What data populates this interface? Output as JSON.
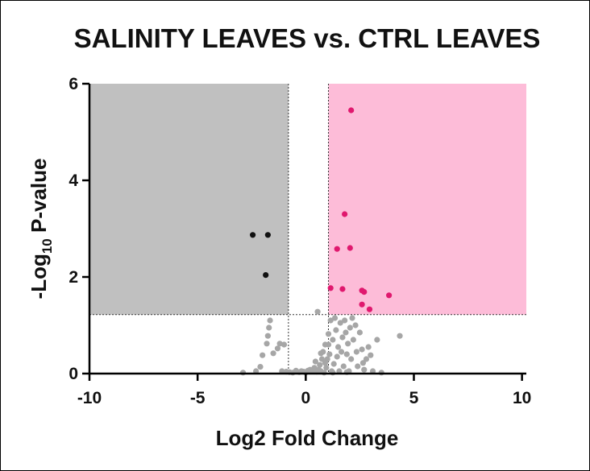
{
  "chart_data": {
    "type": "scatter",
    "title": "SALINITY LEAVES vs. CTRL LEAVES",
    "xlabel": "Log2 Fold Change",
    "ylabel_main": "-Log",
    "ylabel_sub": "10",
    "ylabel_rest": " P-value",
    "xlim": [
      -10,
      10.2
    ],
    "ylim": [
      0,
      6
    ],
    "xticks": [
      -10,
      -5,
      0,
      5,
      10
    ],
    "yticks": [
      0,
      2,
      4,
      6
    ],
    "thresholds": {
      "x_low": -0.8,
      "x_high": 1.05,
      "y": 1.22
    },
    "colors": {
      "down_region": "#c0c0c0",
      "up_region": "#fdbcd8",
      "down": "#111111",
      "up": "#e0186e",
      "ns": "#a6a6a6"
    },
    "series": [
      {
        "role": "down",
        "points": [
          [
            -2.45,
            2.87
          ],
          [
            -1.75,
            2.87
          ],
          [
            -1.85,
            2.04
          ]
        ]
      },
      {
        "role": "up",
        "points": [
          [
            2.1,
            5.45
          ],
          [
            1.8,
            3.3
          ],
          [
            1.45,
            2.58
          ],
          [
            2.05,
            2.6
          ],
          [
            1.15,
            1.77
          ],
          [
            1.7,
            1.75
          ],
          [
            2.6,
            1.72
          ],
          [
            2.7,
            1.69
          ],
          [
            3.85,
            1.62
          ],
          [
            2.6,
            1.43
          ],
          [
            2.95,
            1.33
          ]
        ]
      },
      {
        "role": "ns",
        "points": [
          [
            -2.9,
            0.02
          ],
          [
            -2.3,
            0.05
          ],
          [
            -2.1,
            0.14
          ],
          [
            -2.0,
            0.38
          ],
          [
            -1.8,
            0.62
          ],
          [
            -1.75,
            0.78
          ],
          [
            -1.7,
            0.95
          ],
          [
            -1.65,
            1.1
          ],
          [
            -1.5,
            0.42
          ],
          [
            -1.3,
            0.52
          ],
          [
            -1.2,
            0.62
          ],
          [
            -1.1,
            0.05
          ],
          [
            -1.0,
            0.6
          ],
          [
            -0.9,
            0.04
          ],
          [
            -0.75,
            0.03
          ],
          [
            -0.6,
            0.02
          ],
          [
            -0.45,
            0.06
          ],
          [
            -0.3,
            0.03
          ],
          [
            -0.2,
            0.05
          ],
          [
            -0.1,
            0.04
          ],
          [
            0.0,
            0.02
          ],
          [
            0.1,
            0.06
          ],
          [
            0.2,
            0.08
          ],
          [
            0.3,
            0.05
          ],
          [
            0.4,
            0.12
          ],
          [
            0.45,
            0.25
          ],
          [
            0.5,
            0.04
          ],
          [
            0.55,
            1.28
          ],
          [
            0.6,
            0.08
          ],
          [
            0.65,
            0.18
          ],
          [
            0.7,
            0.05
          ],
          [
            0.75,
            0.3
          ],
          [
            0.8,
            0.45
          ],
          [
            0.85,
            0.02
          ],
          [
            0.9,
            0.6
          ],
          [
            0.95,
            0.12
          ],
          [
            1.0,
            0.3
          ],
          [
            1.05,
            0.82
          ],
          [
            1.1,
            0.4
          ],
          [
            1.15,
            1.1
          ],
          [
            1.2,
            0.05
          ],
          [
            1.25,
            0.7
          ],
          [
            1.3,
            0.2
          ],
          [
            1.35,
            1.15
          ],
          [
            1.4,
            0.9
          ],
          [
            1.45,
            0.35
          ],
          [
            1.5,
            0.55
          ],
          [
            1.55,
            0.05
          ],
          [
            1.6,
            1.05
          ],
          [
            1.65,
            0.45
          ],
          [
            1.7,
            0.75
          ],
          [
            1.75,
            0.15
          ],
          [
            1.8,
            1.1
          ],
          [
            1.85,
            0.85
          ],
          [
            1.9,
            0.4
          ],
          [
            1.95,
            0.62
          ],
          [
            2.0,
            0.05
          ],
          [
            2.05,
            0.95
          ],
          [
            2.1,
            0.3
          ],
          [
            2.15,
            1.15
          ],
          [
            2.2,
            0.7
          ],
          [
            2.3,
            1.0
          ],
          [
            2.35,
            0.45
          ],
          [
            2.4,
            0.15
          ],
          [
            2.5,
            0.85
          ],
          [
            2.6,
            0.5
          ],
          [
            2.7,
            0.08
          ],
          [
            2.8,
            0.3
          ],
          [
            2.9,
            0.55
          ],
          [
            3.1,
            0.05
          ],
          [
            3.3,
            0.7
          ],
          [
            3.5,
            0.02
          ],
          [
            4.35,
            0.78
          ],
          [
            0.9,
            0.22
          ],
          [
            1.05,
            0.6
          ],
          [
            1.25,
            0.02
          ],
          [
            0.7,
            0.42
          ],
          [
            1.9,
            0.03
          ],
          [
            2.65,
            0.22
          ],
          [
            3.0,
            0.38
          ]
        ]
      }
    ]
  }
}
